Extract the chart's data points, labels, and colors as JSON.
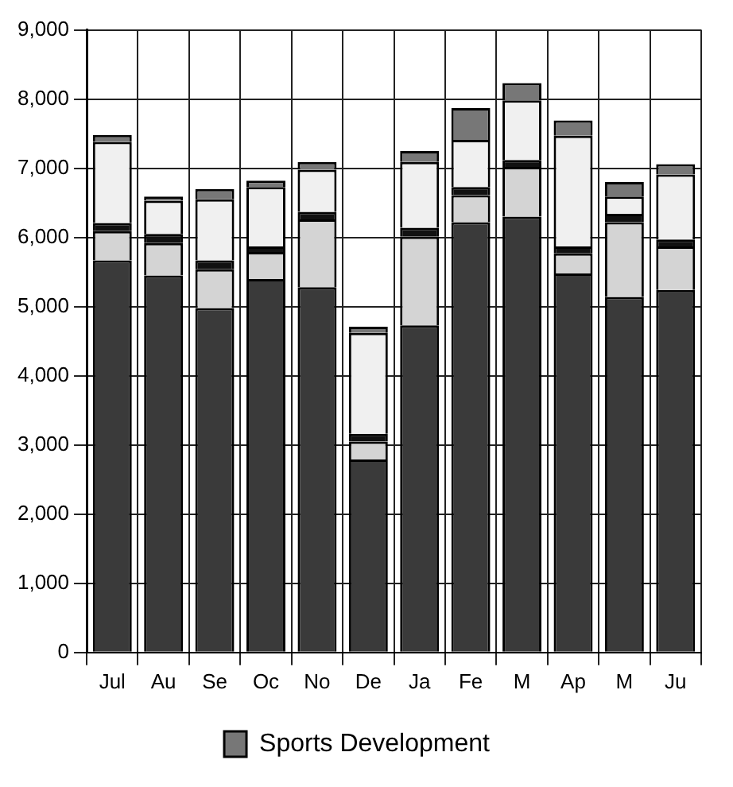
{
  "chart_data": {
    "type": "bar",
    "stacked": true,
    "categories": [
      "Jul",
      "Au",
      "Se",
      "Oc",
      "No",
      "De",
      "Ja",
      "Fe",
      "M",
      "Ap",
      "M",
      "Ju"
    ],
    "series": [
      {
        "color": "#3a3a3a",
        "values": [
          5670,
          5450,
          4980,
          5400,
          5280,
          2790,
          4730,
          6220,
          6300,
          5480,
          5140,
          5240
        ]
      },
      {
        "color": "#d4d4d4",
        "values": [
          420,
          470,
          560,
          390,
          980,
          260,
          1280,
          390,
          720,
          290,
          1080,
          630
        ]
      },
      {
        "color": "#111111",
        "values": [
          120,
          130,
          130,
          80,
          110,
          110,
          130,
          120,
          100,
          100,
          120,
          100
        ]
      },
      {
        "color": "#f0f0f0",
        "values": [
          1170,
          480,
          880,
          860,
          610,
          1460,
          950,
          680,
          860,
          1600,
          250,
          940
        ]
      },
      {
        "name": "Sports Development",
        "color": "#777777",
        "values": [
          100,
          60,
          150,
          90,
          110,
          90,
          160,
          460,
          250,
          220,
          210,
          150
        ]
      }
    ],
    "ylim": [
      0,
      9000
    ],
    "yticks": [
      0,
      {
        "value": 1000,
        "label": "1,000"
      },
      {
        "value": 2000,
        "label": "2,000"
      },
      {
        "value": 3000,
        "label": "3,000"
      },
      {
        "value": 4000,
        "label": "4,000"
      },
      {
        "value": 5000,
        "label": "5,000"
      },
      {
        "value": 6000,
        "label": "6,000"
      },
      {
        "value": 7000,
        "label": "7,000"
      },
      {
        "value": 8000,
        "label": "8,000"
      },
      {
        "value": 9000,
        "label": "9,000"
      }
    ],
    "grid": true,
    "legend": "bottom"
  }
}
